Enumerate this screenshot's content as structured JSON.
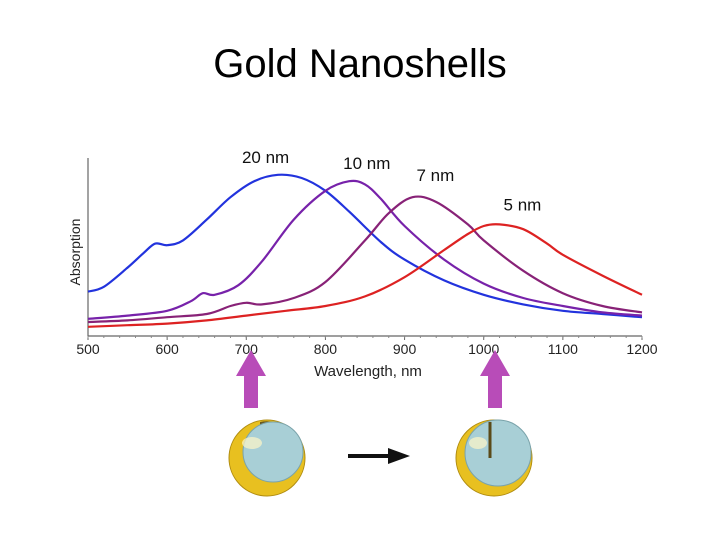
{
  "title": "Gold Nanoshells",
  "chart_data": {
    "type": "line",
    "ylabel": "Absorption",
    "xlabel": "Wavelength, nm",
    "xlim": [
      500,
      1200
    ],
    "ylim": [
      0,
      1
    ],
    "x_ticks": [
      "500",
      "600",
      "700",
      "800",
      "900",
      "1000",
      "1100",
      "1200"
    ],
    "y_ticks_labeled": false,
    "grid": false,
    "series": [
      {
        "name": "20 nm",
        "color": "#2233dd",
        "x": [
          500,
          520,
          550,
          570,
          585,
          600,
          620,
          650,
          680,
          710,
          740,
          770,
          800,
          830,
          870,
          900,
          950,
          1000,
          1050,
          1100,
          1150,
          1200
        ],
        "y": [
          0.24,
          0.27,
          0.39,
          0.48,
          0.54,
          0.53,
          0.56,
          0.69,
          0.83,
          0.93,
          0.97,
          0.95,
          0.87,
          0.74,
          0.55,
          0.44,
          0.31,
          0.22,
          0.16,
          0.12,
          0.1,
          0.08
        ]
      },
      {
        "name": "10 nm",
        "color": "#7722aa",
        "x": [
          500,
          550,
          600,
          630,
          645,
          660,
          690,
          720,
          760,
          800,
          830,
          850,
          870,
          900,
          950,
          1000,
          1050,
          1100,
          1150,
          1200
        ],
        "y": [
          0.07,
          0.09,
          0.12,
          0.18,
          0.23,
          0.22,
          0.28,
          0.43,
          0.69,
          0.87,
          0.93,
          0.91,
          0.82,
          0.65,
          0.44,
          0.29,
          0.2,
          0.15,
          0.11,
          0.09
        ]
      },
      {
        "name": "7 nm",
        "color": "#882277",
        "x": [
          500,
          550,
          600,
          650,
          680,
          700,
          720,
          760,
          800,
          850,
          880,
          910,
          940,
          980,
          1000,
          1050,
          1100,
          1150,
          1200
        ],
        "y": [
          0.05,
          0.06,
          0.08,
          0.1,
          0.15,
          0.17,
          0.16,
          0.2,
          0.3,
          0.56,
          0.73,
          0.83,
          0.8,
          0.66,
          0.56,
          0.37,
          0.23,
          0.15,
          0.11
        ]
      },
      {
        "name": "5 nm",
        "color": "#dd2222",
        "x": [
          500,
          550,
          600,
          650,
          700,
          750,
          800,
          850,
          900,
          950,
          980,
          1000,
          1020,
          1050,
          1080,
          1100,
          1150,
          1200
        ],
        "y": [
          0.02,
          0.03,
          0.04,
          0.06,
          0.09,
          0.12,
          0.15,
          0.21,
          0.33,
          0.5,
          0.6,
          0.65,
          0.66,
          0.63,
          0.54,
          0.47,
          0.34,
          0.22
        ]
      }
    ]
  },
  "arrow_color": "#b84cb8",
  "shell_color": "#e8c020",
  "core_color": "#a8cfd6"
}
